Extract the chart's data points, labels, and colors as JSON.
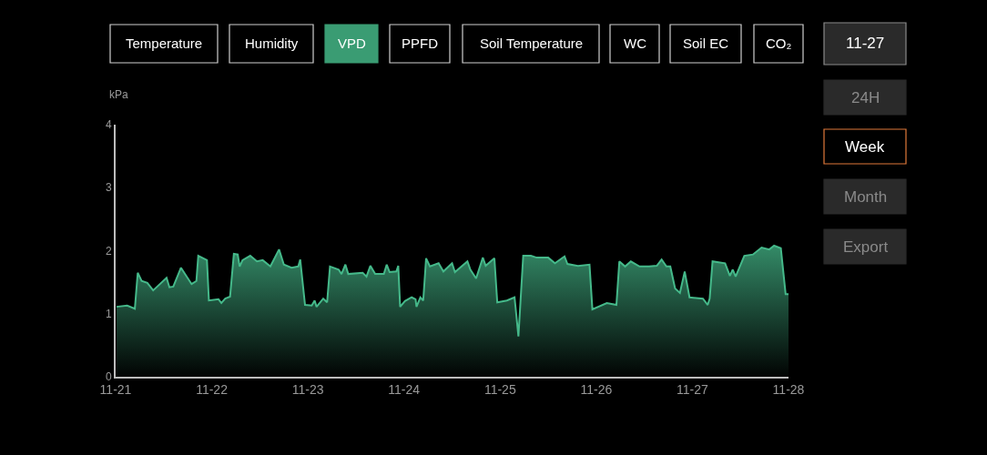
{
  "chart_data": {
    "type": "area",
    "ylabel": "kPa",
    "x": [
      "--11-21T00:14",
      "--11-21T02:53",
      "--11-21T04:48",
      "--11-21T05:31",
      "--11-21T06:29",
      "--11-21T07:55",
      "--11-21T09:22",
      "--11-21T12:43",
      "--11-21T13:26",
      "--11-21T14:24",
      "--11-21T16:19",
      "--11-21T18:58",
      "--11-21T20:10",
      "--11-21T20:38",
      "--11-21T22:48",
      "--11-21T23:17",
      "--11-22T01:41",
      "--11-22T02:24",
      "--11-22T03:22",
      "--11-22T04:34",
      "--11-22T05:31",
      "--11-22T06:29",
      "--11-22T06:58",
      "--11-22T07:41",
      "--11-22T09:36",
      "--11-22T11:17",
      "--11-22T12:43",
      "--11-22T14:38",
      "--11-22T16:48",
      "--11-22T18:00",
      "--11-22T19:55",
      "--11-22T21:36",
      "--11-22T22:05",
      "--11-22T23:17",
      "--11-23T00:58",
      "--11-23T01:41",
      "--11-23T02:10",
      "--11-23T03:50",
      "--11-23T04:19",
      "--11-23T04:48",
      "--11-23T05:31",
      "--11-23T07:41",
      "--11-23T08:24",
      "--11-23T09:22",
      "--11-23T10:05",
      "--11-23T13:41",
      "--11-23T14:38",
      "--11-23T15:36",
      "--11-23T16:48",
      "--11-23T18:58",
      "--11-23T19:41",
      "--11-23T20:24",
      "--11-23T22:05",
      "--11-23T22:34",
      "--11-23T23:02",
      "--11-24T00:14",
      "--11-24T01:55",
      "--11-24T02:53",
      "--11-24T03:07",
      "--11-24T04:05",
      "--11-24T04:48",
      "--11-24T05:31",
      "--11-24T06:29",
      "--11-24T08:38",
      "--11-24T09:50",
      "--11-24T12:00",
      "--11-24T12:43",
      "--11-24T15:50",
      "--11-24T16:34",
      "--11-24T18:00",
      "--11-24T19:41",
      "--11-24T20:24",
      "--11-24T22:34",
      "--11-24T23:17",
      "--11-25T01:41",
      "--11-25T03:36",
      "--11-25T04:34",
      "--11-25T05:46",
      "--11-25T07:41",
      "--11-25T09:07",
      "--11-25T12:00",
      "--11-25T13:41",
      "--11-25T16:05",
      "--11-25T16:48",
      "--11-25T19:26",
      "--11-25T22:19",
      "--11-25T23:02",
      "--11-26T02:38",
      "--11-26T05:02",
      "--11-26T05:46",
      "--11-26T07:12",
      "--11-26T08:38",
      "--11-26T10:48",
      "--11-26T13:12",
      "--11-26T15:07",
      "--11-26T16:19",
      "--11-26T17:31",
      "--11-26T18:29",
      "--11-26T19:41",
      "--11-26T20:53",
      "--11-26T22:05",
      "--11-26T23:17",
      "--11-27T02:38",
      "--11-27T03:50",
      "--11-27T04:19",
      "--11-27T05:02",
      "--11-27T08:10",
      "--11-27T09:22",
      "--11-27T10:05",
      "--11-27T10:48",
      "--11-27T12:58",
      "--11-27T15:07",
      "--11-27T17:17",
      "--11-27T19:12",
      "--11-27T20:24",
      "--11-27T22:05",
      "--11-27T23:17",
      "--11-28T00:00"
    ],
    "series": [
      {
        "color": "#45b98a",
        "values": [
          1.11,
          1.13,
          1.08,
          1.65,
          1.52,
          1.49,
          1.37,
          1.57,
          1.42,
          1.43,
          1.73,
          1.47,
          1.52,
          1.92,
          1.85,
          1.21,
          1.23,
          1.17,
          1.24,
          1.27,
          1.95,
          1.94,
          1.75,
          1.85,
          1.92,
          1.83,
          1.85,
          1.75,
          2.02,
          1.78,
          1.73,
          1.75,
          1.86,
          1.14,
          1.13,
          1.21,
          1.11,
          1.24,
          1.21,
          1.18,
          1.75,
          1.7,
          1.63,
          1.78,
          1.63,
          1.65,
          1.59,
          1.76,
          1.63,
          1.63,
          1.78,
          1.66,
          1.67,
          1.76,
          1.11,
          1.2,
          1.26,
          1.23,
          1.11,
          1.26,
          1.21,
          1.88,
          1.75,
          1.8,
          1.67,
          1.8,
          1.66,
          1.83,
          1.7,
          1.56,
          1.89,
          1.76,
          1.88,
          1.18,
          1.21,
          1.26,
          0.64,
          1.92,
          1.92,
          1.89,
          1.89,
          1.8,
          1.91,
          1.79,
          1.76,
          1.78,
          1.07,
          1.17,
          1.14,
          1.83,
          1.75,
          1.83,
          1.75,
          1.75,
          1.76,
          1.86,
          1.75,
          1.75,
          1.4,
          1.33,
          1.67,
          1.26,
          1.24,
          1.14,
          1.24,
          1.83,
          1.8,
          1.6,
          1.7,
          1.59,
          1.92,
          1.94,
          2.05,
          2.02,
          2.08,
          2.04,
          1.31,
          1.31
        ]
      }
    ],
    "xlim": [
      "--11-21",
      "--11-28"
    ],
    "xticks": [
      {
        "value": "--11-21",
        "label": "11-21"
      },
      {
        "value": "--11-22",
        "label": "11-22"
      },
      {
        "value": "--11-23",
        "label": "11-23"
      },
      {
        "value": "--11-24",
        "label": "11-24"
      },
      {
        "value": "--11-25",
        "label": "11-25"
      },
      {
        "value": "--11-26",
        "label": "11-26"
      },
      {
        "value": "--11-27",
        "label": "11-27"
      },
      {
        "value": "--11-28",
        "label": "11-28"
      }
    ],
    "ylim": [
      0,
      4
    ],
    "yticks": [
      0,
      1,
      2,
      3,
      4
    ],
    "grid": false,
    "annotations": [
      "Temperature",
      "Humidity",
      "VPD",
      "PPFD",
      "Soil Temperature",
      "WC",
      "Soil EC",
      "CO₂",
      "11-27",
      "24H",
      "Week",
      "Month",
      "Export"
    ]
  }
}
